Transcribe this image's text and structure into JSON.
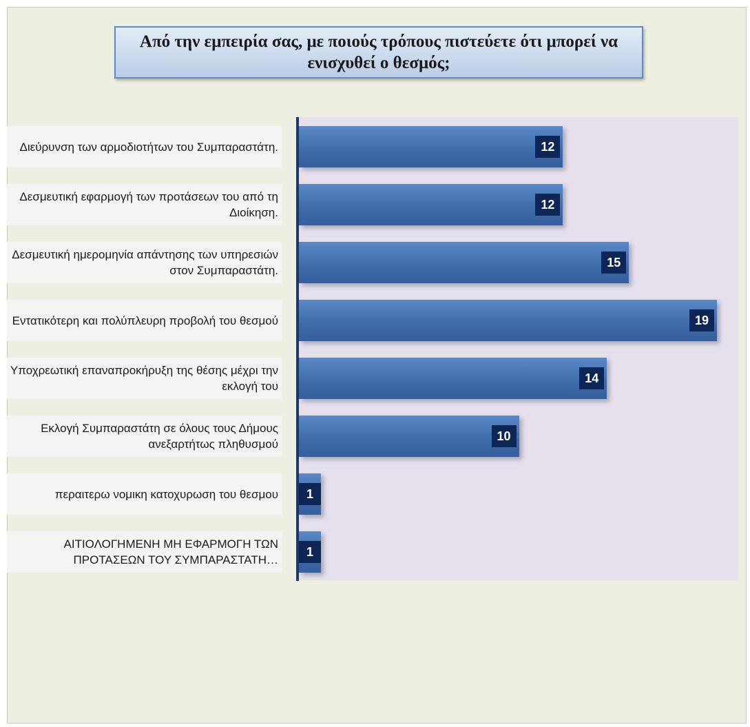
{
  "chart_data": {
    "type": "bar",
    "orientation": "horizontal",
    "title": "Από την εμπειρία σας, με ποιούς τρόπους πιστεύετε ότι μπορεί να ενισχυθεί ο θεσμός;",
    "categories": [
      "Διεύρυνση των αρμοδιοτήτων του Συμπαραστάτη.",
      "Δεσμευτική εφαρμογή των προτάσεων του από τη Διοίκηση.",
      "Δεσμευτική ημερομηνία απάντησης των υπηρεσιών στον Συμπαραστάτη.",
      "Εντατικότερη και πολύπλευρη προβολή του θεσμού",
      "Υποχρεωτική επαναπροκήρυξη της θέσης μέχρι την εκλογή του",
      "Εκλογή Συμπαραστάτη σε όλους τους Δήμους ανεξαρτήτως πληθυσμού",
      "περαιτερω νομικη κατοχυρωση του θεσμου",
      "ΑΙΤΙΟΛΟΓΗΜΕΝΗ ΜΗ ΕΦΑΡΜΟΓΗ ΤΩΝ ΠΡΟΤΑΣΕΩΝ ΤΟΥ ΣΥΜΠΑΡΑΣΤΑΤΗ…"
    ],
    "values": [
      12,
      12,
      15,
      19,
      14,
      10,
      1,
      1
    ],
    "xlim": [
      0,
      20
    ],
    "grid": false,
    "data_labels": true,
    "colors": {
      "bar": "#4a78b8",
      "label_box": "#0d2656",
      "plot_bg": "#e5e0ec",
      "page_bg": "#ecefe1"
    }
  }
}
